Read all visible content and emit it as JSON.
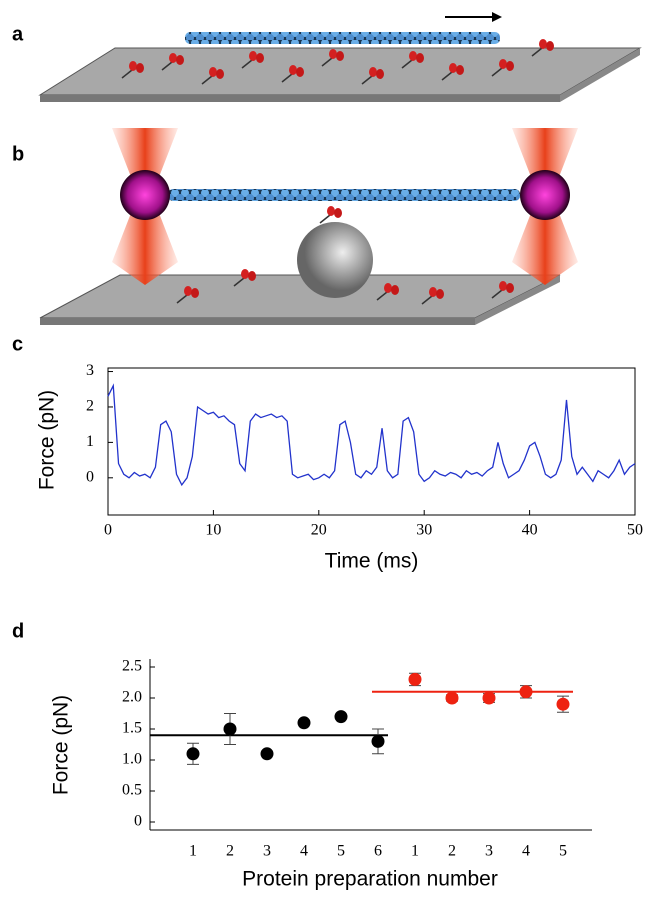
{
  "panel_labels": [
    "a",
    "b",
    "c",
    "d"
  ],
  "chart_data": [
    {
      "type": "line",
      "ylabel": "Force (pN)",
      "xlabel": "Time (ms)",
      "xlim": [
        0,
        50
      ],
      "xticks": [
        0,
        10,
        20,
        30,
        40,
        50
      ],
      "ylim": [
        -1.05,
        3.1
      ],
      "yticks": [
        0,
        1,
        2,
        3
      ],
      "x": [
        0,
        0.5,
        1,
        1.5,
        2,
        2.5,
        3,
        3.5,
        4,
        4.5,
        5,
        5.5,
        6,
        6.5,
        7,
        7.5,
        8,
        8.5,
        9,
        9.5,
        10,
        10.5,
        11,
        11.5,
        12,
        12.5,
        13,
        13.5,
        14,
        14.5,
        15,
        15.5,
        16,
        16.5,
        17,
        17.5,
        18,
        18.5,
        19,
        19.5,
        20,
        20.5,
        21,
        21.5,
        22,
        22.5,
        23,
        23.5,
        24,
        24.5,
        25,
        25.5,
        26,
        26.5,
        27,
        27.5,
        28,
        28.5,
        29,
        29.5,
        30,
        30.5,
        31,
        31.5,
        32,
        32.5,
        33,
        33.5,
        34,
        34.5,
        35,
        35.5,
        36,
        36.5,
        37,
        37.5,
        38,
        38.5,
        39,
        39.5,
        40,
        40.5,
        41,
        41.5,
        42,
        42.5,
        43,
        43.5,
        44,
        44.5,
        45,
        45.5,
        46,
        46.5,
        47,
        47.5,
        48,
        48.5,
        49,
        49.5,
        50
      ],
      "series": [
        {
          "color": "#2233cc",
          "values": [
            2.3,
            2.6,
            0.4,
            0.1,
            0.0,
            0.15,
            0.05,
            0.1,
            0.0,
            0.3,
            1.5,
            1.6,
            1.3,
            0.1,
            -0.2,
            0.0,
            0.6,
            2.0,
            1.9,
            1.8,
            1.85,
            1.7,
            1.75,
            1.6,
            1.5,
            0.4,
            0.2,
            1.6,
            1.8,
            1.7,
            1.75,
            1.8,
            1.7,
            1.75,
            1.6,
            0.1,
            0.0,
            0.05,
            0.1,
            -0.05,
            0.0,
            0.1,
            0.0,
            0.2,
            1.5,
            1.6,
            1.0,
            0.1,
            0.0,
            0.2,
            0.1,
            0.3,
            1.4,
            0.2,
            0.0,
            0.1,
            1.6,
            1.7,
            1.3,
            0.1,
            -0.1,
            0.0,
            0.2,
            0.1,
            0.05,
            0.15,
            0.1,
            0.0,
            0.2,
            0.1,
            0.15,
            0.05,
            0.2,
            0.3,
            1.0,
            0.4,
            0.0,
            0.1,
            0.2,
            0.5,
            0.9,
            1.0,
            0.6,
            0.1,
            0.0,
            0.1,
            0.5,
            2.2,
            0.6,
            0.1,
            0.3,
            0.1,
            -0.1,
            0.2,
            0.1,
            0.0,
            0.2,
            0.5,
            0.1,
            0.3,
            0.4
          ]
        }
      ]
    },
    {
      "type": "scatter",
      "ylabel": "Force (pN)",
      "xlabel": "Protein preparation number",
      "ylim": [
        0,
        2.5
      ],
      "yticks": [
        0,
        0.5,
        {
          "value": 1,
          "label": "1.0"
        },
        1.5,
        {
          "value": 2,
          "label": "2.0"
        },
        2.5
      ],
      "categories": [
        "1",
        "2",
        "3",
        "4",
        "5",
        "6",
        "1",
        "2",
        "3",
        "4",
        "5"
      ],
      "series": [
        {
          "color": "#000000",
          "mean": 1.4,
          "values": [
            1.1,
            1.5,
            1.1,
            1.6,
            1.7,
            1.3,
            null,
            null,
            null,
            null,
            null
          ],
          "errors": [
            0.17,
            0.25,
            0.03,
            0.03,
            0.03,
            0.2,
            null,
            null,
            null,
            null,
            null
          ]
        },
        {
          "color": "#ee2211",
          "mean": 2.1,
          "values": [
            null,
            null,
            null,
            null,
            null,
            null,
            2.3,
            2.0,
            2.0,
            2.1,
            1.9
          ],
          "errors": [
            null,
            null,
            null,
            null,
            null,
            null,
            0.1,
            0.05,
            0.07,
            0.1,
            0.13
          ]
        }
      ]
    }
  ]
}
